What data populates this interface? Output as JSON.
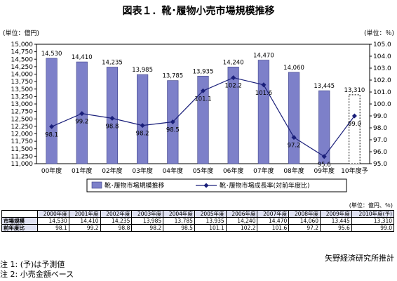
{
  "title": "図表１．靴･履物小売市場規模推移",
  "left_unit": "(単位：億円)",
  "right_unit": "(単位：％)",
  "table_unit": "(単位：億円、％)",
  "source": "矢野経済研究所推計",
  "notes": [
    "注 1:  (予)は予測値",
    "注 2:  小売金額ベース"
  ],
  "chart_data": {
    "type": "bar+line",
    "categories": [
      "00年度",
      "01年度",
      "02年度",
      "03年度",
      "04年度",
      "05年度",
      "06年度",
      "07年度",
      "08年度",
      "09年度",
      "10年度予"
    ],
    "series": [
      {
        "name": "靴･履物市場規模推移",
        "type": "bar",
        "values": [
          14530,
          14410,
          14235,
          13985,
          13785,
          13935,
          14240,
          14470,
          14060,
          13445,
          13310
        ],
        "labels": [
          "14,530",
          "14,410",
          "14,235",
          "13,985",
          "13,785",
          "13,935",
          "14,240",
          "14,470",
          "14,060",
          "13,445",
          "13,310"
        ],
        "forecast_last": true
      },
      {
        "name": "靴･履物市場成長率(対前年度比)",
        "type": "line",
        "axis": "right",
        "values": [
          98.1,
          99.2,
          98.8,
          98.2,
          98.5,
          101.1,
          102.2,
          101.6,
          97.2,
          95.6,
          99.0
        ],
        "labels": [
          "98.1",
          "99.2",
          "98.8",
          "98.2",
          "98.5",
          "101.1",
          "102.2",
          "101.6",
          "97.2",
          "95.6",
          "99.0"
        ]
      }
    ],
    "y_left": {
      "min": 11000,
      "max": 15000,
      "step": 250,
      "ticks": [
        "11,000",
        "11,250",
        "11,500",
        "11,750",
        "12,000",
        "12,250",
        "12,500",
        "12,750",
        "13,000",
        "13,250",
        "13,500",
        "13,750",
        "14,000",
        "14,250",
        "14,500",
        "14,750",
        "15,000"
      ]
    },
    "y_right": {
      "min": 95.0,
      "max": 105.0,
      "step": 1,
      "ticks": [
        "95.0",
        "96.0",
        "97.0",
        "98.0",
        "99.0",
        "100.0",
        "101.0",
        "102.0",
        "103.0",
        "104.0",
        "105.0"
      ]
    },
    "legend_position": "bottom",
    "grid": false
  },
  "colors": {
    "bar": "#7d80c9",
    "bar_edge": "#3a3d86",
    "line": "#1a1f7a",
    "header_bg": "#dfe1f2"
  },
  "table": {
    "years": [
      "2000年度",
      "2001年度",
      "2002年度",
      "2003年度",
      "2004年度",
      "2005年度",
      "2006年度",
      "2007年度",
      "2008年度",
      "2009年度",
      "2010年度(予)"
    ],
    "rows": [
      {
        "label": "市場規模",
        "values": [
          "14,530",
          "14,410",
          "14,235",
          "13,985",
          "13,785",
          "13,935",
          "14,240",
          "14,470",
          "14,060",
          "13,445",
          "13,310"
        ]
      },
      {
        "label": "前年度比",
        "values": [
          "98.1",
          "99.2",
          "98.8",
          "98.2",
          "98.5",
          "101.1",
          "102.2",
          "101.6",
          "97.2",
          "95.6",
          "99.0"
        ]
      }
    ]
  }
}
